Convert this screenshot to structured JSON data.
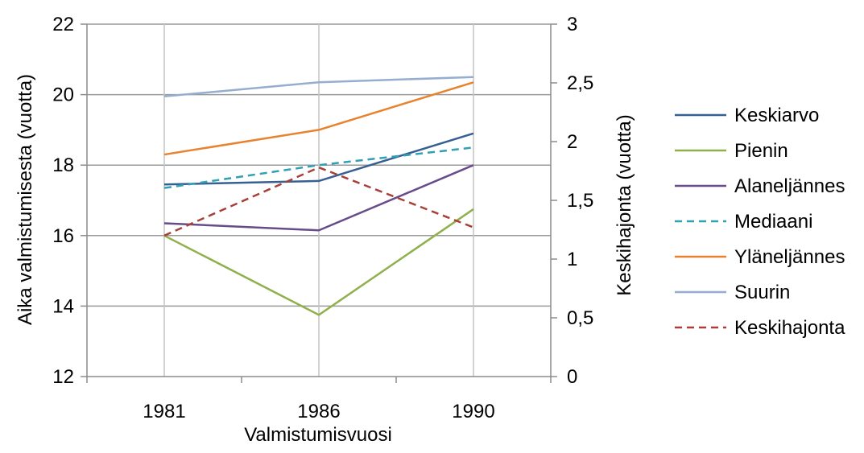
{
  "chart_data": {
    "type": "line",
    "xlabel": "Valmistumisvuosi",
    "ylabel_left": "Aika valmistumisesta (vuotta)",
    "ylabel_right": "Keskihajonta (vuotta)",
    "categories": [
      "1981",
      "1986",
      "1990"
    ],
    "ylim_left": [
      12,
      22
    ],
    "yticks_left": [
      "12",
      "14",
      "16",
      "18",
      "20",
      "22"
    ],
    "ylim_right": [
      0,
      3
    ],
    "yticks_right": [
      "0",
      "0,5",
      "1",
      "1,5",
      "2",
      "2,5",
      "3"
    ],
    "grid": true,
    "legend_position": "right",
    "series": [
      {
        "name": "Keskiarvo",
        "axis": "left",
        "color": "#376092",
        "dashed": false,
        "values": [
          17.45,
          17.55,
          18.9
        ]
      },
      {
        "name": "Pienin",
        "axis": "left",
        "color": "#8FB04B",
        "dashed": false,
        "values": [
          16.0,
          13.75,
          16.75
        ]
      },
      {
        "name": "Alaneljännes",
        "axis": "left",
        "color": "#674C8A",
        "dashed": false,
        "values": [
          16.35,
          16.15,
          18.0
        ]
      },
      {
        "name": "Mediaani",
        "axis": "left",
        "color": "#31A0B4",
        "dashed": true,
        "values": [
          17.35,
          18.0,
          18.5
        ]
      },
      {
        "name": "Yläneljännes",
        "axis": "left",
        "color": "#E8822E",
        "dashed": false,
        "values": [
          18.3,
          19.0,
          20.35
        ]
      },
      {
        "name": "Suurin",
        "axis": "left",
        "color": "#95AED0",
        "dashed": false,
        "values": [
          19.95,
          20.35,
          20.5
        ]
      },
      {
        "name": "Keskihajonta",
        "axis": "right",
        "color": "#A8403A",
        "dashed": true,
        "values": [
          1.2,
          1.78,
          1.27
        ]
      }
    ]
  }
}
